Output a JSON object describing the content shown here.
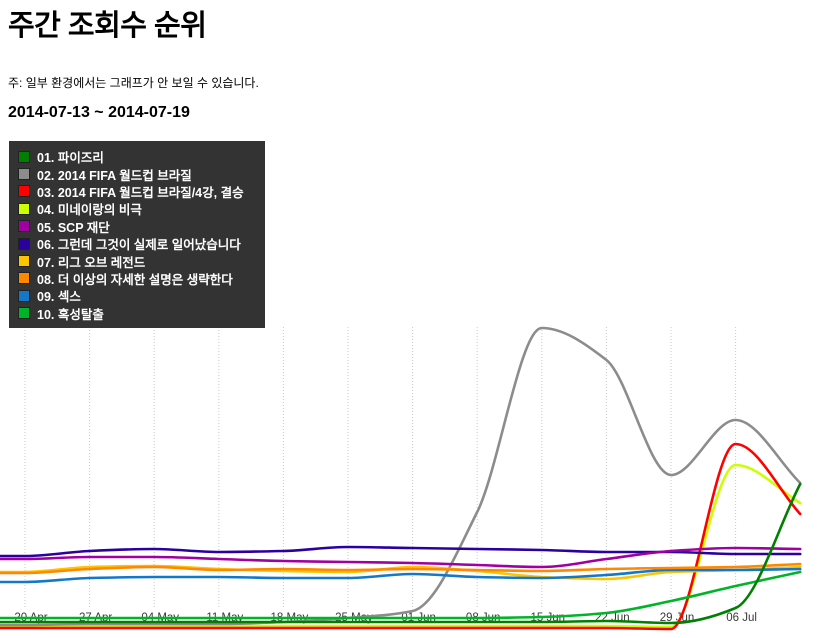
{
  "page": {
    "title": "주간 조회수 순위",
    "note": "주: 일부 환경에서는 그래프가 안 보일 수 있습니다.",
    "date_range": "2014-07-13 ~ 2014-07-19"
  },
  "legend": {
    "background_color": "#333333",
    "text_color": "#ffffff",
    "position": "top-left-overlay"
  },
  "chart_data": {
    "type": "line",
    "title": "주간 조회수 순위",
    "x_labels": [
      "20 Apr",
      "27 Apr",
      "04 May",
      "11 May",
      "18 May",
      "25 May",
      "01 Jun",
      "08 Jun",
      "15 Jun",
      "22 Jun",
      "29 Jun",
      "06 Jul"
    ],
    "points_per_series": 13,
    "xlabel": "",
    "ylabel": "",
    "y_axis_visible": false,
    "ylim": [
      0,
      310
    ],
    "grid": "vertical-dotted",
    "gridline_color": "#c8c8c8",
    "legend_position": "top-left-overlay",
    "series": [
      {
        "rank": "01",
        "label": "01. 파이즈리",
        "color": "#008000",
        "values": [
          8,
          8,
          8,
          8,
          8,
          8,
          8,
          8,
          8,
          9,
          7,
          22,
          146
        ]
      },
      {
        "rank": "02",
        "label": "02. 2014 FIFA 월드컵 브라질",
        "color": "#8c8c8c",
        "values": [
          5,
          6,
          6,
          6,
          8,
          12,
          19,
          118,
          302,
          270,
          155,
          210,
          147
        ]
      },
      {
        "rank": "03",
        "label": "03. 2014 FIFA 월드컵 브라질/4강, 결승",
        "color": "#ff0000",
        "values": [
          2,
          2,
          2,
          2,
          2,
          2,
          2,
          2,
          2,
          2,
          1,
          186,
          116
        ]
      },
      {
        "rank": "04",
        "label": "04. 미네이랑의 비극",
        "color": "#ccff00",
        "values": [
          4,
          4,
          4,
          4,
          4,
          4,
          4,
          4,
          4,
          4,
          3,
          165,
          127
        ]
      },
      {
        "rank": "05",
        "label": "05. SCP 재단",
        "color": "#a000a0",
        "values": [
          71,
          73,
          73,
          71,
          69,
          68,
          67,
          65,
          63,
          71,
          79,
          82,
          81
        ]
      },
      {
        "rank": "06",
        "label": "06. 그런데 그것이 실제로 일어났습니다",
        "color": "#2a00a0",
        "values": [
          74,
          79,
          81,
          78,
          79,
          83,
          82,
          81,
          80,
          78,
          78,
          76,
          76
        ]
      },
      {
        "rank": "07",
        "label": "07. 리그 오브 레전드",
        "color": "#ffc400",
        "values": [
          58,
          63,
          64,
          61,
          59,
          58,
          63,
          59,
          53,
          51,
          58,
          60,
          63
        ]
      },
      {
        "rank": "08",
        "label": "08. 더 이상의 자세한 설명은 생략한다",
        "color": "#ff8800",
        "values": [
          57,
          61,
          63,
          60,
          61,
          60,
          61,
          60,
          59,
          61,
          62,
          63,
          66
        ]
      },
      {
        "rank": "09",
        "label": "09. 섹스",
        "color": "#1478c8",
        "values": [
          48,
          52,
          53,
          53,
          52,
          52,
          56,
          53,
          52,
          55,
          60,
          60,
          61
        ]
      },
      {
        "rank": "10",
        "label": "10. 혹성탈출",
        "color": "#00b428",
        "values": [
          12,
          12,
          12,
          12,
          12,
          12,
          12,
          12,
          13,
          17,
          29,
          44,
          58
        ]
      }
    ],
    "z_order": [
      "04",
      "03",
      "02",
      "07",
      "09",
      "08",
      "06",
      "05",
      "10",
      "01"
    ]
  }
}
